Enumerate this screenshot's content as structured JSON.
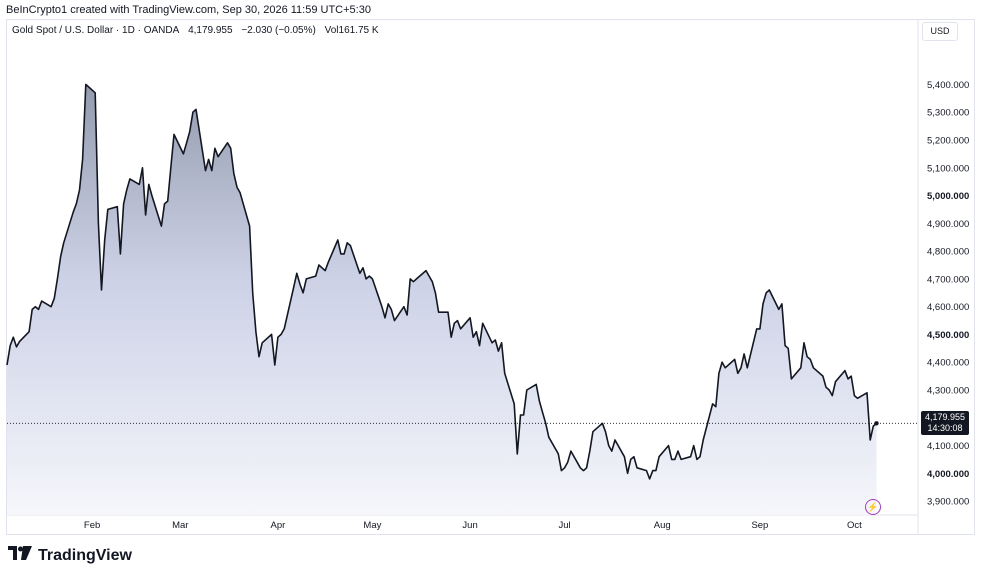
{
  "header": {
    "created_by": "BeInCrypto1 created with TradingView.com, Sep 30, 2026 11:59 UTC+5:30"
  },
  "legend": {
    "symbol": "Gold Spot / U.S. Dollar · 1D · OANDA",
    "last": "4,179.955",
    "change": "−2.030 (−0.05%)",
    "volume": "Vol161.75 K"
  },
  "currency_label": "USD",
  "price_badge": {
    "price": "4,179.955",
    "countdown": "14:30:08"
  },
  "brand": {
    "name": "TradingView"
  },
  "icons": {
    "event": "lightning-icon",
    "logo": "tradingview-logo-icon"
  },
  "colors": {
    "line": "#131722",
    "area_top": "#8e95a8",
    "area_bottom": "#f5f6fb",
    "event": "#a33ebd"
  },
  "chart_data": {
    "type": "area",
    "title": "Gold Spot / U.S. Dollar",
    "xlabel": "",
    "ylabel": "",
    "ylim": [
      3850,
      5560
    ],
    "xlim": [
      "2026-01-05",
      "2026-10-05"
    ],
    "grid": false,
    "last_price_line": 4179.955,
    "y_ticks": [
      {
        "value": 3900,
        "label": "3,900.000",
        "bold": false
      },
      {
        "value": 4000,
        "label": "4,000.000",
        "bold": true
      },
      {
        "value": 4100,
        "label": "4,100.000",
        "bold": false
      },
      {
        "value": 4200,
        "label": "4,200.000",
        "bold": false
      },
      {
        "value": 4300,
        "label": "4,300.000",
        "bold": false
      },
      {
        "value": 4400,
        "label": "4,400.000",
        "bold": false
      },
      {
        "value": 4500,
        "label": "4,500.000",
        "bold": true
      },
      {
        "value": 4600,
        "label": "4,600.000",
        "bold": false
      },
      {
        "value": 4700,
        "label": "4,700.000",
        "bold": false
      },
      {
        "value": 4800,
        "label": "4,800.000",
        "bold": false
      },
      {
        "value": 4900,
        "label": "4,900.000",
        "bold": false
      },
      {
        "value": 5000,
        "label": "5,000.000",
        "bold": true
      },
      {
        "value": 5100,
        "label": "5,100.000",
        "bold": false
      },
      {
        "value": 5200,
        "label": "5,200.000",
        "bold": false
      },
      {
        "value": 5300,
        "label": "5,300.000",
        "bold": false
      },
      {
        "value": 5400,
        "label": "5,400.000",
        "bold": false
      }
    ],
    "x_ticks": [
      {
        "date": "2026-02-01",
        "label": "Feb"
      },
      {
        "date": "2026-03-01",
        "label": "Mar"
      },
      {
        "date": "2026-04-01",
        "label": "Apr"
      },
      {
        "date": "2026-05-01",
        "label": "May"
      },
      {
        "date": "2026-06-01",
        "label": "Jun"
      },
      {
        "date": "2026-07-01",
        "label": "Jul"
      },
      {
        "date": "2026-08-01",
        "label": "Aug"
      },
      {
        "date": "2026-09-01",
        "label": "Sep"
      },
      {
        "date": "2026-10-01",
        "label": "Oct"
      }
    ],
    "series": [
      {
        "points": [
          [
            "2026-01-05",
            4390
          ],
          [
            "2026-01-06",
            4460
          ],
          [
            "2026-01-07",
            4490
          ],
          [
            "2026-01-08",
            4455
          ],
          [
            "2026-01-09",
            4475
          ],
          [
            "2026-01-12",
            4510
          ],
          [
            "2026-01-13",
            4590
          ],
          [
            "2026-01-14",
            4600
          ],
          [
            "2026-01-15",
            4590
          ],
          [
            "2026-01-16",
            4620
          ],
          [
            "2026-01-19",
            4600
          ],
          [
            "2026-01-20",
            4630
          ],
          [
            "2026-01-21",
            4700
          ],
          [
            "2026-01-22",
            4780
          ],
          [
            "2026-01-23",
            4830
          ],
          [
            "2026-01-26",
            4940
          ],
          [
            "2026-01-27",
            4970
          ],
          [
            "2026-01-28",
            5020
          ],
          [
            "2026-01-29",
            5130
          ],
          [
            "2026-01-30",
            5400
          ],
          [
            "2026-02-02",
            5370
          ],
          [
            "2026-02-03",
            4900
          ],
          [
            "2026-02-04",
            4660
          ],
          [
            "2026-02-05",
            4840
          ],
          [
            "2026-02-06",
            4950
          ],
          [
            "2026-02-09",
            4960
          ],
          [
            "2026-02-10",
            4790
          ],
          [
            "2026-02-11",
            4970
          ],
          [
            "2026-02-12",
            5020
          ],
          [
            "2026-02-13",
            5060
          ],
          [
            "2026-02-16",
            5040
          ],
          [
            "2026-02-17",
            5100
          ],
          [
            "2026-02-18",
            4930
          ],
          [
            "2026-02-19",
            5040
          ],
          [
            "2026-02-20",
            5000
          ],
          [
            "2026-02-23",
            4890
          ],
          [
            "2026-02-24",
            4970
          ],
          [
            "2026-02-25",
            4980
          ],
          [
            "2026-02-26",
            5100
          ],
          [
            "2026-02-27",
            5220
          ],
          [
            "2026-03-02",
            5150
          ],
          [
            "2026-03-03",
            5190
          ],
          [
            "2026-03-04",
            5230
          ],
          [
            "2026-03-05",
            5300
          ],
          [
            "2026-03-06",
            5310
          ],
          [
            "2026-03-09",
            5090
          ],
          [
            "2026-03-10",
            5130
          ],
          [
            "2026-03-11",
            5090
          ],
          [
            "2026-03-12",
            5170
          ],
          [
            "2026-03-13",
            5140
          ],
          [
            "2026-03-16",
            5190
          ],
          [
            "2026-03-17",
            5170
          ],
          [
            "2026-03-18",
            5080
          ],
          [
            "2026-03-19",
            5030
          ],
          [
            "2026-03-20",
            5010
          ],
          [
            "2026-03-23",
            4890
          ],
          [
            "2026-03-24",
            4650
          ],
          [
            "2026-03-25",
            4510
          ],
          [
            "2026-03-26",
            4420
          ],
          [
            "2026-03-27",
            4470
          ],
          [
            "2026-03-30",
            4500
          ],
          [
            "2026-03-31",
            4390
          ],
          [
            "2026-04-01",
            4490
          ],
          [
            "2026-04-02",
            4500
          ],
          [
            "2026-04-03",
            4520
          ],
          [
            "2026-04-06",
            4670
          ],
          [
            "2026-04-07",
            4720
          ],
          [
            "2026-04-08",
            4680
          ],
          [
            "2026-04-09",
            4650
          ],
          [
            "2026-04-10",
            4700
          ],
          [
            "2026-04-13",
            4710
          ],
          [
            "2026-04-14",
            4750
          ],
          [
            "2026-04-15",
            4740
          ],
          [
            "2026-04-16",
            4730
          ],
          [
            "2026-04-17",
            4760
          ],
          [
            "2026-04-20",
            4840
          ],
          [
            "2026-04-21",
            4790
          ],
          [
            "2026-04-22",
            4790
          ],
          [
            "2026-04-23",
            4830
          ],
          [
            "2026-04-24",
            4820
          ],
          [
            "2026-04-27",
            4720
          ],
          [
            "2026-04-28",
            4740
          ],
          [
            "2026-04-29",
            4700
          ],
          [
            "2026-04-30",
            4710
          ],
          [
            "2026-05-01",
            4700
          ],
          [
            "2026-05-04",
            4600
          ],
          [
            "2026-05-05",
            4560
          ],
          [
            "2026-05-06",
            4610
          ],
          [
            "2026-05-07",
            4590
          ],
          [
            "2026-05-08",
            4550
          ],
          [
            "2026-05-11",
            4600
          ],
          [
            "2026-05-12",
            4570
          ],
          [
            "2026-05-13",
            4700
          ],
          [
            "2026-05-14",
            4690
          ],
          [
            "2026-05-15",
            4700
          ],
          [
            "2026-05-18",
            4730
          ],
          [
            "2026-05-19",
            4710
          ],
          [
            "2026-05-20",
            4690
          ],
          [
            "2026-05-21",
            4650
          ],
          [
            "2026-05-22",
            4580
          ],
          [
            "2026-05-25",
            4580
          ],
          [
            "2026-05-26",
            4490
          ],
          [
            "2026-05-27",
            4540
          ],
          [
            "2026-05-28",
            4550
          ],
          [
            "2026-05-29",
            4520
          ],
          [
            "2026-06-01",
            4560
          ],
          [
            "2026-06-02",
            4490
          ],
          [
            "2026-06-03",
            4510
          ],
          [
            "2026-06-04",
            4460
          ],
          [
            "2026-06-05",
            4540
          ],
          [
            "2026-06-08",
            4470
          ],
          [
            "2026-06-09",
            4480
          ],
          [
            "2026-06-10",
            4440
          ],
          [
            "2026-06-11",
            4470
          ],
          [
            "2026-06-12",
            4360
          ],
          [
            "2026-06-15",
            4250
          ],
          [
            "2026-06-16",
            4070
          ],
          [
            "2026-06-17",
            4210
          ],
          [
            "2026-06-18",
            4210
          ],
          [
            "2026-06-19",
            4300
          ],
          [
            "2026-06-22",
            4320
          ],
          [
            "2026-06-23",
            4260
          ],
          [
            "2026-06-24",
            4220
          ],
          [
            "2026-06-25",
            4180
          ],
          [
            "2026-06-26",
            4130
          ],
          [
            "2026-06-29",
            4070
          ],
          [
            "2026-06-30",
            4010
          ],
          [
            "2026-07-01",
            4020
          ],
          [
            "2026-07-02",
            4040
          ],
          [
            "2026-07-03",
            4080
          ],
          [
            "2026-07-06",
            4020
          ],
          [
            "2026-07-07",
            4010
          ],
          [
            "2026-07-08",
            4020
          ],
          [
            "2026-07-09",
            4080
          ],
          [
            "2026-07-10",
            4150
          ],
          [
            "2026-07-13",
            4180
          ],
          [
            "2026-07-14",
            4150
          ],
          [
            "2026-07-15",
            4100
          ],
          [
            "2026-07-16",
            4080
          ],
          [
            "2026-07-17",
            4120
          ],
          [
            "2026-07-20",
            4060
          ],
          [
            "2026-07-21",
            4000
          ],
          [
            "2026-07-22",
            4050
          ],
          [
            "2026-07-23",
            4060
          ],
          [
            "2026-07-24",
            4020
          ],
          [
            "2026-07-27",
            4010
          ],
          [
            "2026-07-28",
            3980
          ],
          [
            "2026-07-29",
            4010
          ],
          [
            "2026-07-30",
            4010
          ],
          [
            "2026-07-31",
            4060
          ],
          [
            "2026-08-03",
            4100
          ],
          [
            "2026-08-04",
            4050
          ],
          [
            "2026-08-05",
            4050
          ],
          [
            "2026-08-06",
            4080
          ],
          [
            "2026-08-07",
            4050
          ],
          [
            "2026-08-10",
            4060
          ],
          [
            "2026-08-11",
            4100
          ],
          [
            "2026-08-12",
            4050
          ],
          [
            "2026-08-13",
            4060
          ],
          [
            "2026-08-14",
            4120
          ],
          [
            "2026-08-17",
            4250
          ],
          [
            "2026-08-18",
            4240
          ],
          [
            "2026-08-19",
            4360
          ],
          [
            "2026-08-20",
            4400
          ],
          [
            "2026-08-21",
            4380
          ],
          [
            "2026-08-24",
            4410
          ],
          [
            "2026-08-25",
            4360
          ],
          [
            "2026-08-26",
            4380
          ],
          [
            "2026-08-27",
            4430
          ],
          [
            "2026-08-28",
            4380
          ],
          [
            "2026-08-31",
            4520
          ],
          [
            "2026-09-01",
            4520
          ],
          [
            "2026-09-02",
            4610
          ],
          [
            "2026-09-03",
            4650
          ],
          [
            "2026-09-04",
            4660
          ],
          [
            "2026-09-07",
            4590
          ],
          [
            "2026-09-08",
            4610
          ],
          [
            "2026-09-09",
            4460
          ],
          [
            "2026-09-10",
            4450
          ],
          [
            "2026-09-11",
            4340
          ],
          [
            "2026-09-14",
            4380
          ],
          [
            "2026-09-15",
            4470
          ],
          [
            "2026-09-16",
            4420
          ],
          [
            "2026-09-17",
            4410
          ],
          [
            "2026-09-18",
            4380
          ],
          [
            "2026-09-21",
            4350
          ],
          [
            "2026-09-22",
            4310
          ],
          [
            "2026-09-23",
            4300
          ],
          [
            "2026-09-24",
            4280
          ],
          [
            "2026-09-25",
            4330
          ],
          [
            "2026-09-28",
            4370
          ],
          [
            "2026-09-29",
            4340
          ],
          [
            "2026-09-30",
            4350
          ],
          [
            "2026-10-01",
            4280
          ],
          [
            "2026-10-02",
            4270
          ],
          [
            "2026-10-05",
            4290
          ],
          [
            "2026-10-06",
            4120
          ],
          [
            "2026-10-07",
            4170
          ],
          [
            "2026-10-08",
            4180
          ]
        ]
      }
    ]
  }
}
